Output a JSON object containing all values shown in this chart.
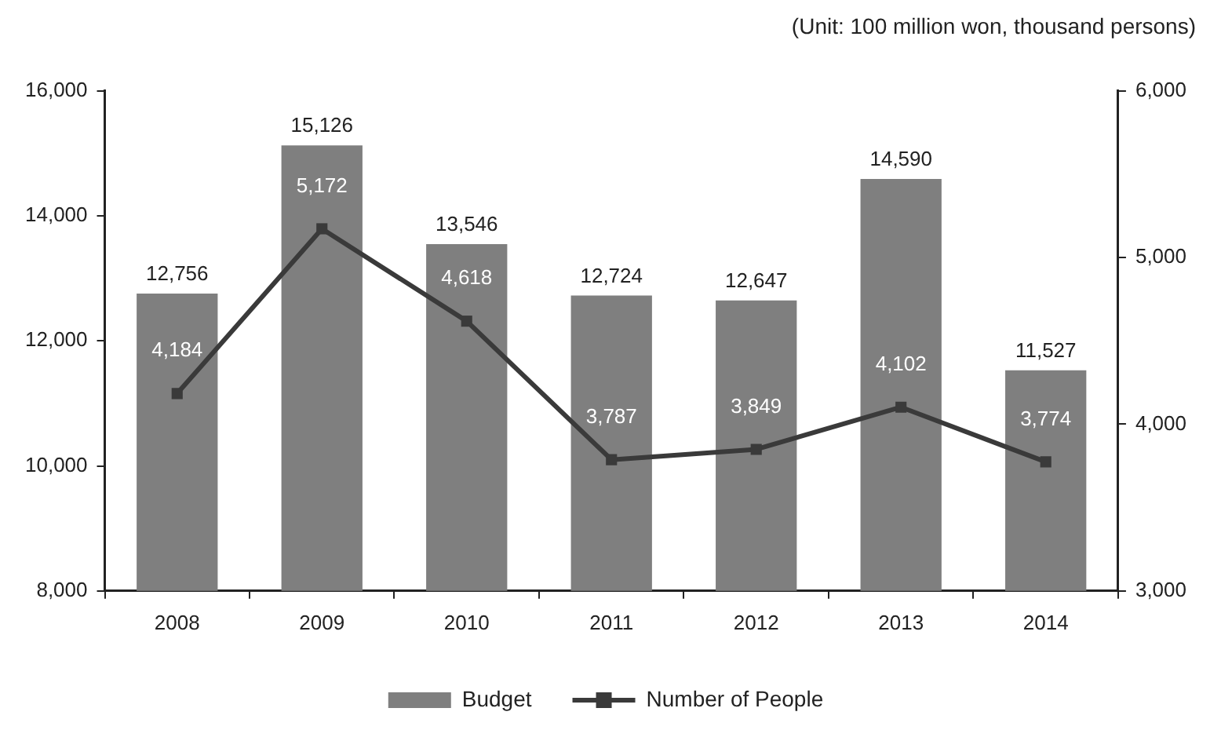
{
  "chart_data": {
    "type": "bar",
    "subtitle": "(Unit: 100 million won, thousand persons)",
    "categories": [
      "2008",
      "2009",
      "2010",
      "2011",
      "2012",
      "2013",
      "2014"
    ],
    "series": [
      {
        "name": "Budget",
        "color": "#7f7f7f",
        "values": [
          12756,
          15126,
          13546,
          12724,
          12647,
          14590,
          11527
        ],
        "value_labels": [
          "12,756",
          "15,126",
          "13,546",
          "12,724",
          "12,647",
          "14,590",
          "11,527"
        ]
      },
      {
        "name": "Number of People",
        "type": "line",
        "axis": "y2",
        "color": "#3a3a3a",
        "values": [
          4184,
          5172,
          4618,
          3787,
          3849,
          4102,
          3774
        ],
        "value_labels": [
          "4,184",
          "5,172",
          "4,618",
          "3,787",
          "3,849",
          "4,102",
          "3,774"
        ]
      }
    ],
    "ylim": [
      8000,
      16000
    ],
    "yticks": [
      {
        "value": 8000,
        "label": "8,000"
      },
      {
        "value": 10000,
        "label": "10,000"
      },
      {
        "value": 12000,
        "label": "12,000"
      },
      {
        "value": 14000,
        "label": "14,000"
      },
      {
        "value": 16000,
        "label": "16,000"
      }
    ],
    "y2lim": [
      3000,
      6000
    ],
    "y2ticks": [
      {
        "value": 3000,
        "label": "3,000"
      },
      {
        "value": 4000,
        "label": "4,000"
      },
      {
        "value": 5000,
        "label": "5,000"
      },
      {
        "value": 6000,
        "label": "6,000"
      }
    ],
    "legend": "bottom",
    "marker": "square",
    "line_style": "solid"
  }
}
